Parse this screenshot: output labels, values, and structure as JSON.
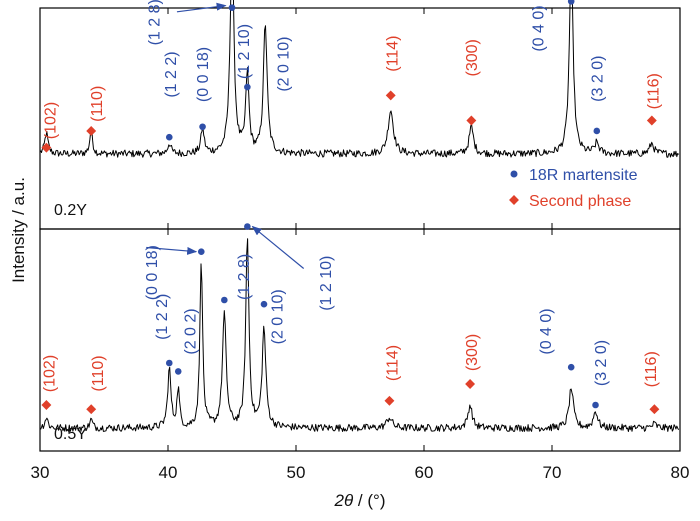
{
  "chart_data": {
    "type": "line",
    "xlabel_symbol": "2θ",
    "xlabel_unit": " / (°)",
    "ylabel": "Intensity / a.u.",
    "xlim": [
      30,
      80
    ],
    "xticks": [
      "30",
      "40",
      "50",
      "60",
      "70",
      "80"
    ],
    "grid": false,
    "legend_placement": "top panel, bottom-right",
    "legend": [
      {
        "label": "18R martensite",
        "marker": "circle",
        "color": "#2f4fa8"
      },
      {
        "label": "Second phase",
        "marker": "diamond",
        "color": "#e0402a"
      }
    ],
    "colors": {
      "martensite": "#2f4fa8",
      "second_phase": "#e0402a",
      "line": "#000000"
    },
    "panels": [
      {
        "name": "0.2Y",
        "baseline": 0.34,
        "peaks": [
          {
            "x": 30.5,
            "h": 0.1,
            "w": 0.3
          },
          {
            "x": 34.0,
            "h": 0.12,
            "w": 0.25
          },
          {
            "x": 40.1,
            "h": 0.05,
            "w": 0.3
          },
          {
            "x": 42.7,
            "h": 0.12,
            "w": 0.3
          },
          {
            "x": 45.0,
            "h": 1.0,
            "w": 0.35
          },
          {
            "x": 46.2,
            "h": 0.38,
            "w": 0.3
          },
          {
            "x": 47.6,
            "h": 0.62,
            "w": 0.35
          },
          {
            "x": 57.4,
            "h": 0.21,
            "w": 0.5
          },
          {
            "x": 63.7,
            "h": 0.13,
            "w": 0.4
          },
          {
            "x": 71.5,
            "h": 0.92,
            "w": 0.35
          },
          {
            "x": 73.5,
            "h": 0.05,
            "w": 0.4
          },
          {
            "x": 77.8,
            "h": 0.05,
            "w": 0.4
          }
        ],
        "markers": [
          {
            "x": 30.5,
            "y": 0.37,
            "phase": "second"
          },
          {
            "x": 34.0,
            "y": 0.45,
            "phase": "second"
          },
          {
            "x": 40.1,
            "y": 0.42,
            "phase": "martensite"
          },
          {
            "x": 42.7,
            "y": 0.47,
            "phase": "martensite"
          },
          {
            "x": 45.0,
            "y": 1.04,
            "phase": "martensite"
          },
          {
            "x": 46.2,
            "y": 0.66,
            "phase": "martensite"
          },
          {
            "x": 57.4,
            "y": 0.62,
            "phase": "second"
          },
          {
            "x": 63.7,
            "y": 0.5,
            "phase": "second"
          },
          {
            "x": 71.5,
            "y": 1.07,
            "phase": "martensite"
          },
          {
            "x": 73.5,
            "y": 0.45,
            "phase": "martensite"
          },
          {
            "x": 77.8,
            "y": 0.5,
            "phase": "second"
          }
        ],
        "labels": [
          {
            "text": "(102)",
            "x": 30.9,
            "y": 0.5,
            "phase": "second"
          },
          {
            "text": "(110)",
            "x": 34.5,
            "y": 0.58,
            "phase": "second"
          },
          {
            "text": "(1 2 2)",
            "x": 40.3,
            "y": 0.72,
            "phase": "martensite"
          },
          {
            "text": "(0 0 18)",
            "x": 42.8,
            "y": 0.72,
            "phase": "martensite"
          },
          {
            "text": "(1 2 8)",
            "x": 39.0,
            "y": 0.97,
            "phase": "martensite"
          },
          {
            "text": "(1 2 10)",
            "x": 46.0,
            "y": 0.83,
            "phase": "martensite"
          },
          {
            "text": "(2 0 10)",
            "x": 49.1,
            "y": 0.77,
            "phase": "martensite"
          },
          {
            "text": "(114)",
            "x": 57.6,
            "y": 0.82,
            "phase": "second"
          },
          {
            "text": "(300)",
            "x": 63.8,
            "y": 0.8,
            "phase": "second"
          },
          {
            "text": "(0 4 0)",
            "x": 69.0,
            "y": 0.94,
            "phase": "martensite"
          },
          {
            "text": "(3 2 0)",
            "x": 73.6,
            "y": 0.7,
            "phase": "martensite"
          },
          {
            "text": "(116)",
            "x": 78.0,
            "y": 0.64,
            "phase": "second"
          }
        ],
        "arrows": [
          {
            "from": [
              40.7,
              1.02
            ],
            "to": [
              44.5,
              1.05
            ]
          }
        ]
      },
      {
        "name": "0.5Y",
        "baseline": 0.09,
        "peaks": [
          {
            "x": 30.5,
            "h": 0.05,
            "w": 0.3
          },
          {
            "x": 34.0,
            "h": 0.04,
            "w": 0.25
          },
          {
            "x": 40.1,
            "h": 0.28,
            "w": 0.3
          },
          {
            "x": 40.8,
            "h": 0.18,
            "w": 0.25
          },
          {
            "x": 42.6,
            "h": 0.81,
            "w": 0.25
          },
          {
            "x": 44.4,
            "h": 0.54,
            "w": 0.35
          },
          {
            "x": 46.2,
            "h": 0.9,
            "w": 0.3
          },
          {
            "x": 47.5,
            "h": 0.47,
            "w": 0.35
          },
          {
            "x": 57.3,
            "h": 0.05,
            "w": 0.5
          },
          {
            "x": 63.6,
            "h": 0.11,
            "w": 0.4
          },
          {
            "x": 71.5,
            "h": 0.19,
            "w": 0.4
          },
          {
            "x": 73.4,
            "h": 0.08,
            "w": 0.4
          },
          {
            "x": 78.0,
            "h": 0.02,
            "w": 0.4
          }
        ],
        "markers": [
          {
            "x": 30.5,
            "y": 0.2,
            "phase": "second"
          },
          {
            "x": 34.0,
            "y": 0.18,
            "phase": "second"
          },
          {
            "x": 40.1,
            "y": 0.4,
            "phase": "martensite"
          },
          {
            "x": 40.8,
            "y": 0.36,
            "phase": "martensite"
          },
          {
            "x": 42.6,
            "y": 0.93,
            "phase": "martensite"
          },
          {
            "x": 44.4,
            "y": 0.7,
            "phase": "martensite"
          },
          {
            "x": 46.2,
            "y": 1.05,
            "phase": "martensite"
          },
          {
            "x": 47.5,
            "y": 0.68,
            "phase": "martensite"
          },
          {
            "x": 57.3,
            "y": 0.22,
            "phase": "second"
          },
          {
            "x": 63.6,
            "y": 0.3,
            "phase": "second"
          },
          {
            "x": 71.5,
            "y": 0.38,
            "phase": "martensite"
          },
          {
            "x": 73.4,
            "y": 0.2,
            "phase": "martensite"
          },
          {
            "x": 78.0,
            "y": 0.18,
            "phase": "second"
          }
        ],
        "labels": [
          {
            "text": "(102)",
            "x": 30.8,
            "y": 0.35,
            "phase": "second"
          },
          {
            "text": "(110)",
            "x": 34.6,
            "y": 0.35,
            "phase": "second"
          },
          {
            "text": "(1 2 2)",
            "x": 39.6,
            "y": 0.62,
            "phase": "martensite"
          },
          {
            "text": "(2 0 2)",
            "x": 41.8,
            "y": 0.55,
            "phase": "martensite"
          },
          {
            "text": "(0 0 18)",
            "x": 38.8,
            "y": 0.83,
            "phase": "martensite"
          },
          {
            "text": "(1 2 8)",
            "x": 46.0,
            "y": 0.81,
            "phase": "martensite"
          },
          {
            "text": "(2 0 10)",
            "x": 48.6,
            "y": 0.62,
            "phase": "martensite"
          },
          {
            "text": "(1 2 10)",
            "x": 52.4,
            "y": 0.78,
            "phase": "martensite"
          },
          {
            "text": "(114)",
            "x": 57.6,
            "y": 0.4,
            "phase": "second"
          },
          {
            "text": "(300)",
            "x": 63.8,
            "y": 0.45,
            "phase": "second"
          },
          {
            "text": "(0 4 0)",
            "x": 69.6,
            "y": 0.55,
            "phase": "martensite"
          },
          {
            "text": "(3 2 0)",
            "x": 73.9,
            "y": 0.4,
            "phase": "martensite"
          },
          {
            "text": "(116)",
            "x": 77.8,
            "y": 0.37,
            "phase": "second"
          }
        ],
        "arrows": [
          {
            "from": [
              38.3,
              0.95
            ],
            "to": [
              42.2,
              0.93
            ]
          },
          {
            "from": [
              50.6,
              0.85
            ],
            "to": [
              46.6,
              1.05
            ]
          }
        ]
      }
    ]
  }
}
